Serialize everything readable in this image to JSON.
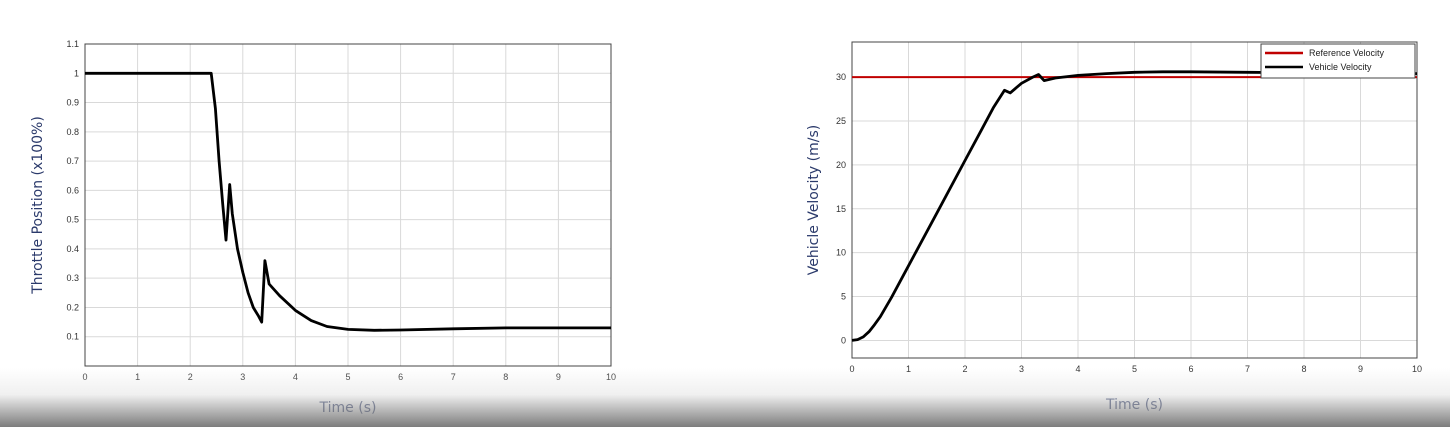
{
  "chart_data": [
    {
      "type": "line",
      "xlabel": "Time (s)",
      "ylabel": "Throttle Position (x100%)",
      "xlim": [
        0,
        10
      ],
      "ylim": [
        0,
        1.1
      ],
      "xticks": [
        0,
        1,
        2,
        3,
        4,
        5,
        6,
        7,
        8,
        9,
        10
      ],
      "yticks": [
        0.1,
        0.2,
        0.3,
        0.4,
        0.5,
        0.6,
        0.7,
        0.8,
        0.9,
        1,
        1.1
      ],
      "grid": true,
      "series": [
        {
          "color": "#000000",
          "x": [
            0,
            2.4,
            2.48,
            2.55,
            2.62,
            2.68,
            2.75,
            2.8,
            2.9,
            3.0,
            3.1,
            3.2,
            3.3,
            3.36,
            3.42,
            3.5,
            3.7,
            4.0,
            4.3,
            4.6,
            5.0,
            5.5,
            6.0,
            7.0,
            8.0,
            9.0,
            10.0
          ],
          "y": [
            1.0,
            1.0,
            0.88,
            0.7,
            0.55,
            0.43,
            0.62,
            0.52,
            0.4,
            0.32,
            0.25,
            0.2,
            0.17,
            0.15,
            0.36,
            0.28,
            0.24,
            0.19,
            0.155,
            0.135,
            0.125,
            0.122,
            0.123,
            0.127,
            0.13,
            0.13,
            0.13
          ]
        }
      ]
    },
    {
      "type": "line",
      "xlabel": "Time (s)",
      "ylabel": "Vehicle Velocity (m/s)",
      "xlim": [
        0,
        10
      ],
      "ylim": [
        -2,
        34
      ],
      "xticks": [
        0,
        1,
        2,
        3,
        4,
        5,
        6,
        7,
        8,
        9,
        10
      ],
      "yticks": [
        0,
        5,
        10,
        15,
        20,
        25,
        30
      ],
      "grid": true,
      "legend": "top-right",
      "series": [
        {
          "name": "Reference Velocity",
          "color": "#c00000",
          "x": [
            0,
            10
          ],
          "y": [
            30,
            30
          ]
        },
        {
          "name": "Vehicle Velocity",
          "color": "#000000",
          "x": [
            0,
            0.1,
            0.2,
            0.3,
            0.4,
            0.5,
            0.7,
            1.0,
            1.5,
            2.0,
            2.3,
            2.5,
            2.7,
            2.8,
            3.0,
            3.2,
            3.3,
            3.4,
            3.6,
            4.0,
            4.5,
            5.0,
            5.5,
            6.0,
            7.0,
            8.0,
            9.0,
            10.0
          ],
          "y": [
            0,
            0.1,
            0.4,
            1.0,
            1.8,
            2.7,
            4.9,
            8.5,
            14.5,
            20.5,
            24.1,
            26.5,
            28.5,
            28.2,
            29.3,
            30.0,
            30.3,
            29.6,
            29.9,
            30.2,
            30.4,
            30.55,
            30.6,
            30.6,
            30.55,
            30.5,
            30.45,
            30.4
          ]
        }
      ]
    }
  ]
}
